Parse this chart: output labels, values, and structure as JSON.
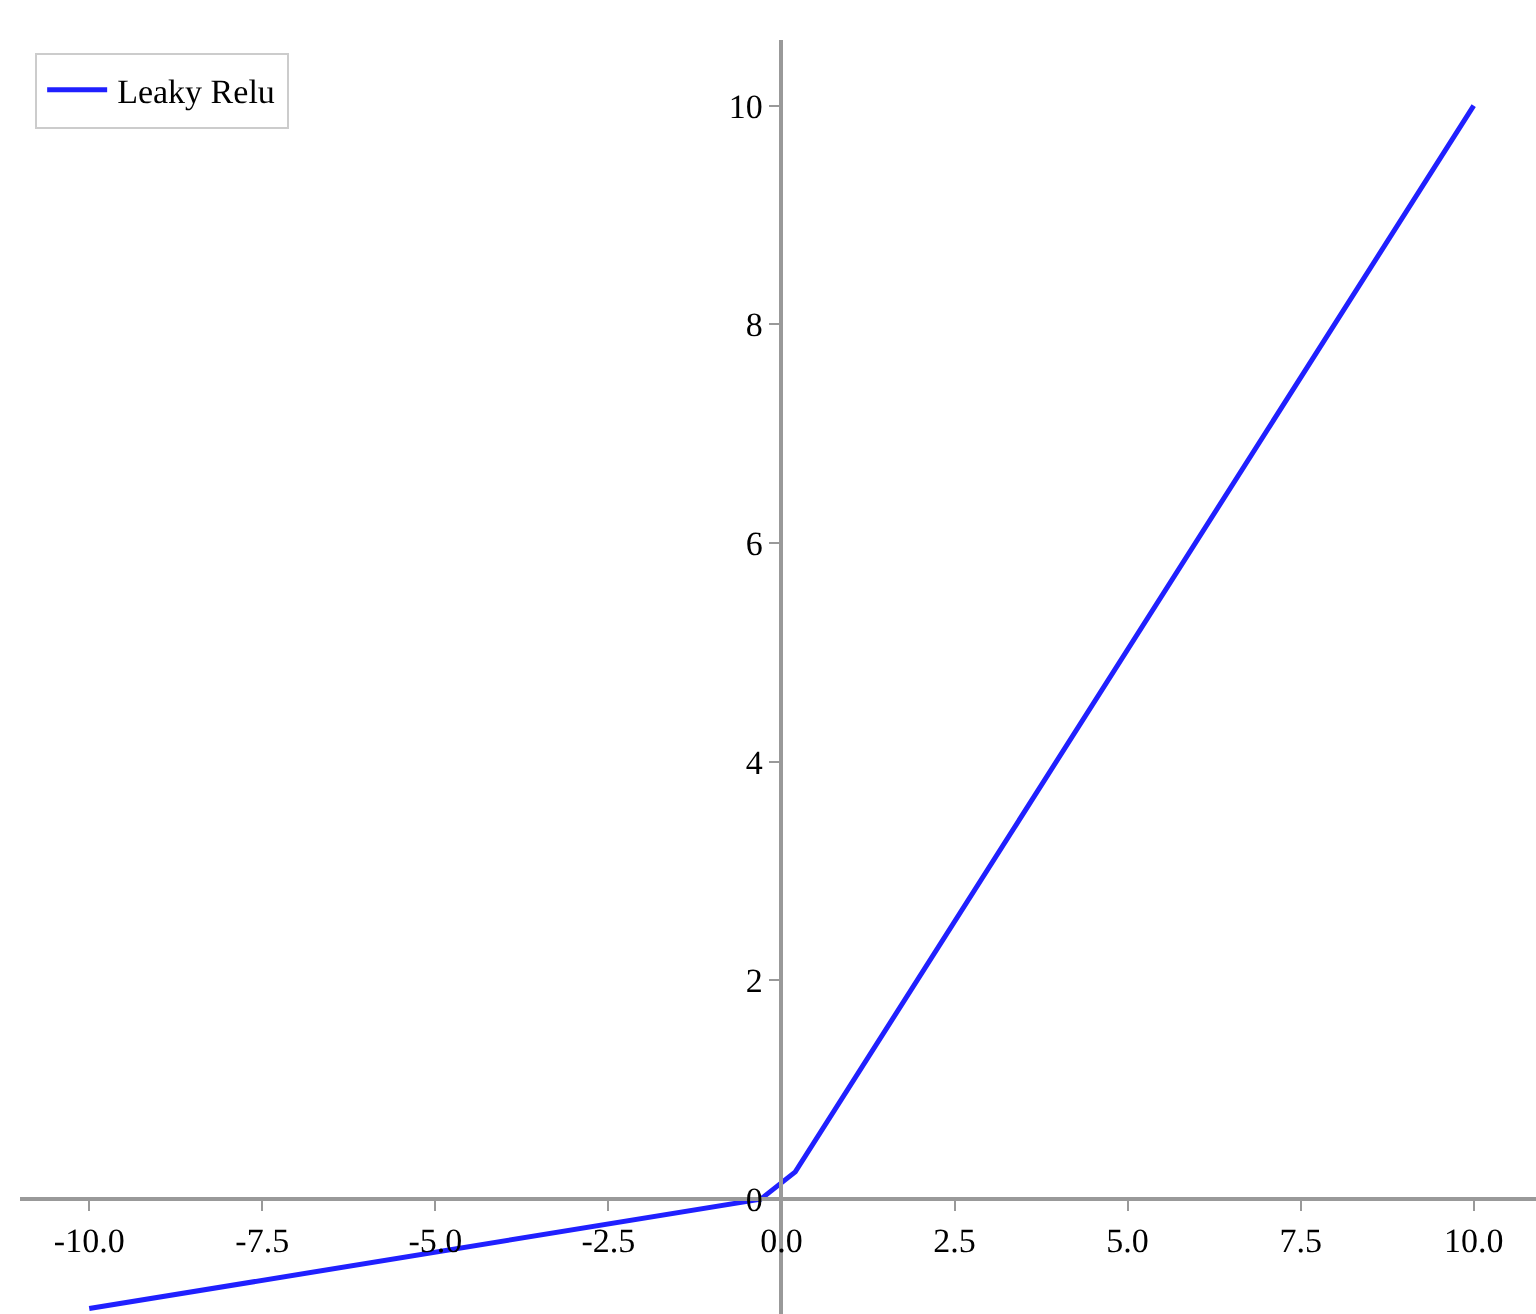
{
  "chart_data": {
    "type": "line",
    "series": [
      {
        "name": "Leaky Relu",
        "color": "#2020ff",
        "x": [
          -10,
          -0.3,
          0.2,
          10
        ],
        "values": [
          -1,
          0,
          0.25,
          10
        ]
      }
    ],
    "xlim": [
      -11,
      10.9
    ],
    "ylim": [
      -1.05,
      10.6
    ],
    "xticks": [
      {
        "value": -10,
        "label": "-10.0"
      },
      {
        "value": -7.5,
        "label": "-7.5"
      },
      {
        "value": -5,
        "label": "-5.0"
      },
      {
        "value": -2.5,
        "label": "-2.5"
      },
      {
        "value": 0,
        "label": "0.0"
      },
      {
        "value": 2.5,
        "label": "2.5"
      },
      {
        "value": 5,
        "label": "5.0"
      },
      {
        "value": 7.5,
        "label": "7.5"
      },
      {
        "value": 10,
        "label": "10.0"
      }
    ],
    "yticks": [
      0,
      2,
      4,
      6,
      8,
      10
    ],
    "legend": "top left",
    "marker": "none",
    "line_style": "solid"
  }
}
